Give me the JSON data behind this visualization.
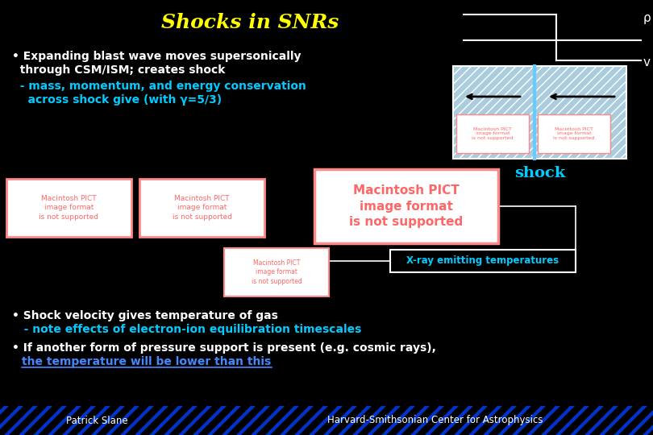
{
  "title": "Shocks in SNRs",
  "title_color": "#FFFF00",
  "title_fontsize": 18,
  "bg_color": "#000000",
  "bullet1_line1": "• Expanding blast wave moves supersonically",
  "bullet1_line2": "  through CSM/ISM; creates shock",
  "bullet1_sub1": "  - mass, momentum, and energy conservation",
  "bullet1_sub2": "    across shock give (with γ=5/3)",
  "bullet1_color": "#FFFFFF",
  "bullet1_sub_color": "#00CCFF",
  "bullet2_line1": "• Shock velocity gives temperature of gas",
  "bullet2_line2": "   - note effects of electron-ion equilibration timescales",
  "bullet2_color": "#FFFFFF",
  "bullet2_sub_color": "#00CCFF",
  "bullet3_line1": "• If another form of pressure support is present (e.g. cosmic rays),",
  "bullet3_line2_plain": "  ",
  "bullet3_line2_underline": "the temperature will be lower than this",
  "bullet3_color": "#FFFFFF",
  "bullet3_underline_color": "#4488FF",
  "shock_label": "shock",
  "shock_label_color": "#00CCFF",
  "xray_label": "X-ray emitting temperatures",
  "xray_label_color": "#00CCFF",
  "footer_left": "Patrick Slane",
  "footer_right": "Harvard-Smithsonian Center for Astrophysics",
  "footer_color": "#FFFFFF",
  "rho_label": "ρ",
  "v_label": "v",
  "diagram_color": "#FFFFFF",
  "pict_bg": "#FFFFFF",
  "pict_border": "#FF8888",
  "pict_text_color": "#FF6666",
  "pict_text": "Macintosh PICT\nimage format\nis not supported",
  "footer_stripe_color": "#0033CC",
  "footer_stripe_dark": "#000033",
  "shock_line_color": "#66CCFF",
  "hatch_bg_color": "#AACCDD",
  "step_color": "#FFFFFF",
  "fontsize_main": 10,
  "fontsize_sub": 10
}
